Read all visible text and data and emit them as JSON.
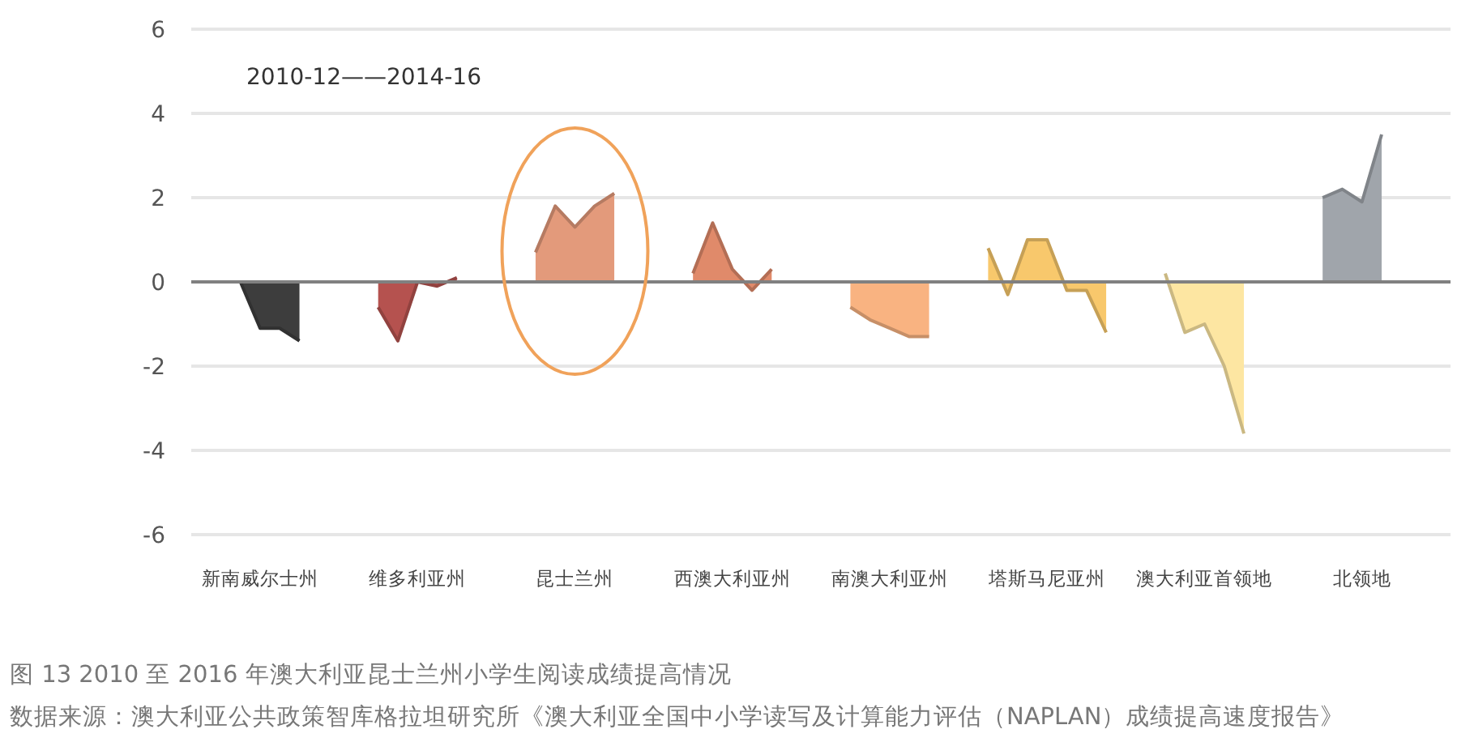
{
  "chart_data": {
    "type": "area",
    "title": "图 13 2010 至 2016 年澳大利亚昆士兰州小学生阅读成绩提高情况",
    "annotations": [
      "2010-12——2014-16",
      "数据来源：澳大利亚公共政策智库格拉坦研究所《澳大利亚全国中小学读写及计算能力评估（NAPLAN）成绩提高速度报告》"
    ],
    "categories": [
      null,
      null,
      null,
      "新南威尔士州",
      null,
      null,
      null,
      null,
      null,
      null,
      null,
      "维多利亚州",
      null,
      null,
      null,
      null,
      null,
      null,
      null,
      "昆士兰州",
      null,
      null,
      null,
      null,
      null,
      null,
      null,
      "西澳大利亚州",
      null,
      null,
      null,
      null,
      null,
      null,
      null,
      "南澳大利亚州",
      null,
      null,
      null,
      null,
      null,
      null,
      null,
      "塔斯马尼亚州",
      null,
      null,
      null,
      null,
      null,
      null,
      null,
      "澳大利亚首领地",
      null,
      null,
      null,
      null,
      null,
      null,
      null,
      "北领地",
      null,
      null,
      null,
      null
    ],
    "ylim": [
      -6,
      6
    ],
    "yticks": [
      -6,
      -4,
      -2,
      0,
      2,
      4,
      6
    ],
    "grid": "y",
    "series": [
      {
        "color": "#3d3d3d",
        "values": [
          null,
          null,
          0,
          -1.1,
          -1.1,
          -1.4,
          null,
          null,
          null,
          null,
          null,
          null,
          null,
          null,
          null,
          null,
          null,
          null,
          null,
          null,
          null,
          null,
          null,
          null,
          null,
          null,
          null,
          null,
          null,
          null,
          null,
          null,
          null,
          null,
          null,
          null,
          null,
          null,
          null,
          null,
          null,
          null,
          null,
          null,
          null,
          null,
          null,
          null,
          null,
          null,
          null,
          null,
          null,
          null,
          null,
          null,
          null,
          null,
          null,
          null,
          null,
          null,
          null,
          null
        ]
      },
      {
        "color": "#b5524f",
        "values": [
          null,
          null,
          null,
          null,
          null,
          null,
          null,
          null,
          null,
          -0.6,
          -1.4,
          0,
          -0.1,
          0.1,
          null,
          null,
          null,
          null,
          null,
          null,
          null,
          null,
          null,
          null,
          null,
          null,
          null,
          null,
          null,
          null,
          null,
          null,
          null,
          null,
          null,
          null,
          null,
          null,
          null,
          null,
          null,
          null,
          null,
          null,
          null,
          null,
          null,
          null,
          null,
          null,
          null,
          null,
          null,
          null,
          null,
          null,
          null,
          null,
          null,
          null,
          null,
          null,
          null,
          null
        ]
      },
      {
        "color": "#e39a7b",
        "values": [
          null,
          null,
          null,
          null,
          null,
          null,
          null,
          null,
          null,
          null,
          null,
          null,
          null,
          null,
          null,
          null,
          null,
          0.7,
          1.8,
          1.3,
          1.8,
          2.1,
          null,
          null,
          null,
          null,
          null,
          null,
          null,
          null,
          null,
          null,
          null,
          null,
          null,
          null,
          null,
          null,
          null,
          null,
          null,
          null,
          null,
          null,
          null,
          null,
          null,
          null,
          null,
          null,
          null,
          null,
          null,
          null,
          null,
          null,
          null,
          null,
          null,
          null,
          null,
          null,
          null,
          null
        ]
      },
      {
        "color": "#e08a6a",
        "values": [
          null,
          null,
          null,
          null,
          null,
          null,
          null,
          null,
          null,
          null,
          null,
          null,
          null,
          null,
          null,
          null,
          null,
          null,
          null,
          null,
          null,
          null,
          null,
          null,
          null,
          0.2,
          1.4,
          0.3,
          -0.2,
          0.3,
          null,
          null,
          null,
          null,
          null,
          null,
          null,
          null,
          null,
          null,
          null,
          null,
          null,
          null,
          null,
          null,
          null,
          null,
          null,
          null,
          null,
          null,
          null,
          null,
          null,
          null,
          null,
          null,
          null,
          null,
          null,
          null,
          null,
          null
        ]
      },
      {
        "color": "#f9b381",
        "values": [
          null,
          null,
          null,
          null,
          null,
          null,
          null,
          null,
          null,
          null,
          null,
          null,
          null,
          null,
          null,
          null,
          null,
          null,
          null,
          null,
          null,
          null,
          null,
          null,
          null,
          null,
          null,
          null,
          null,
          null,
          null,
          null,
          null,
          -0.6,
          -0.9,
          -1.1,
          -1.3,
          -1.3,
          null,
          null,
          null,
          null,
          null,
          null,
          null,
          null,
          null,
          null,
          null,
          null,
          null,
          null,
          null,
          null,
          null,
          null,
          null,
          null,
          null,
          null,
          null,
          null,
          null,
          null
        ]
      },
      {
        "color": "#f8c86c",
        "values": [
          null,
          null,
          null,
          null,
          null,
          null,
          null,
          null,
          null,
          null,
          null,
          null,
          null,
          null,
          null,
          null,
          null,
          null,
          null,
          null,
          null,
          null,
          null,
          null,
          null,
          null,
          null,
          null,
          null,
          null,
          null,
          null,
          null,
          null,
          null,
          null,
          null,
          null,
          null,
          null,
          0.8,
          -0.3,
          1.0,
          1.0,
          -0.2,
          -0.2,
          -1.2,
          null,
          null,
          null,
          null,
          null,
          null,
          null,
          null,
          null,
          null,
          null,
          null,
          null,
          null,
          null,
          null,
          null
        ]
      },
      {
        "color": "#fde6a2",
        "values": [
          null,
          null,
          null,
          null,
          null,
          null,
          null,
          null,
          null,
          null,
          null,
          null,
          null,
          null,
          null,
          null,
          null,
          null,
          null,
          null,
          null,
          null,
          null,
          null,
          null,
          null,
          null,
          null,
          null,
          null,
          null,
          null,
          null,
          null,
          null,
          null,
          null,
          null,
          null,
          null,
          null,
          null,
          null,
          null,
          null,
          null,
          null,
          null,
          null,
          0.2,
          -1.2,
          -1.0,
          -2.0,
          -3.6,
          null,
          null,
          null,
          null,
          null,
          null,
          null,
          null,
          null,
          null
        ]
      },
      {
        "color": "#a0a5ab",
        "values": [
          null,
          null,
          null,
          null,
          null,
          null,
          null,
          null,
          null,
          null,
          null,
          null,
          null,
          null,
          null,
          null,
          null,
          null,
          null,
          null,
          null,
          null,
          null,
          null,
          null,
          null,
          null,
          null,
          null,
          null,
          null,
          null,
          null,
          null,
          null,
          null,
          null,
          null,
          null,
          null,
          null,
          null,
          null,
          null,
          null,
          null,
          null,
          null,
          null,
          null,
          null,
          null,
          null,
          null,
          null,
          null,
          null,
          2.0,
          2.2,
          1.9,
          3.5,
          null,
          null,
          null
        ]
      }
    ]
  }
}
